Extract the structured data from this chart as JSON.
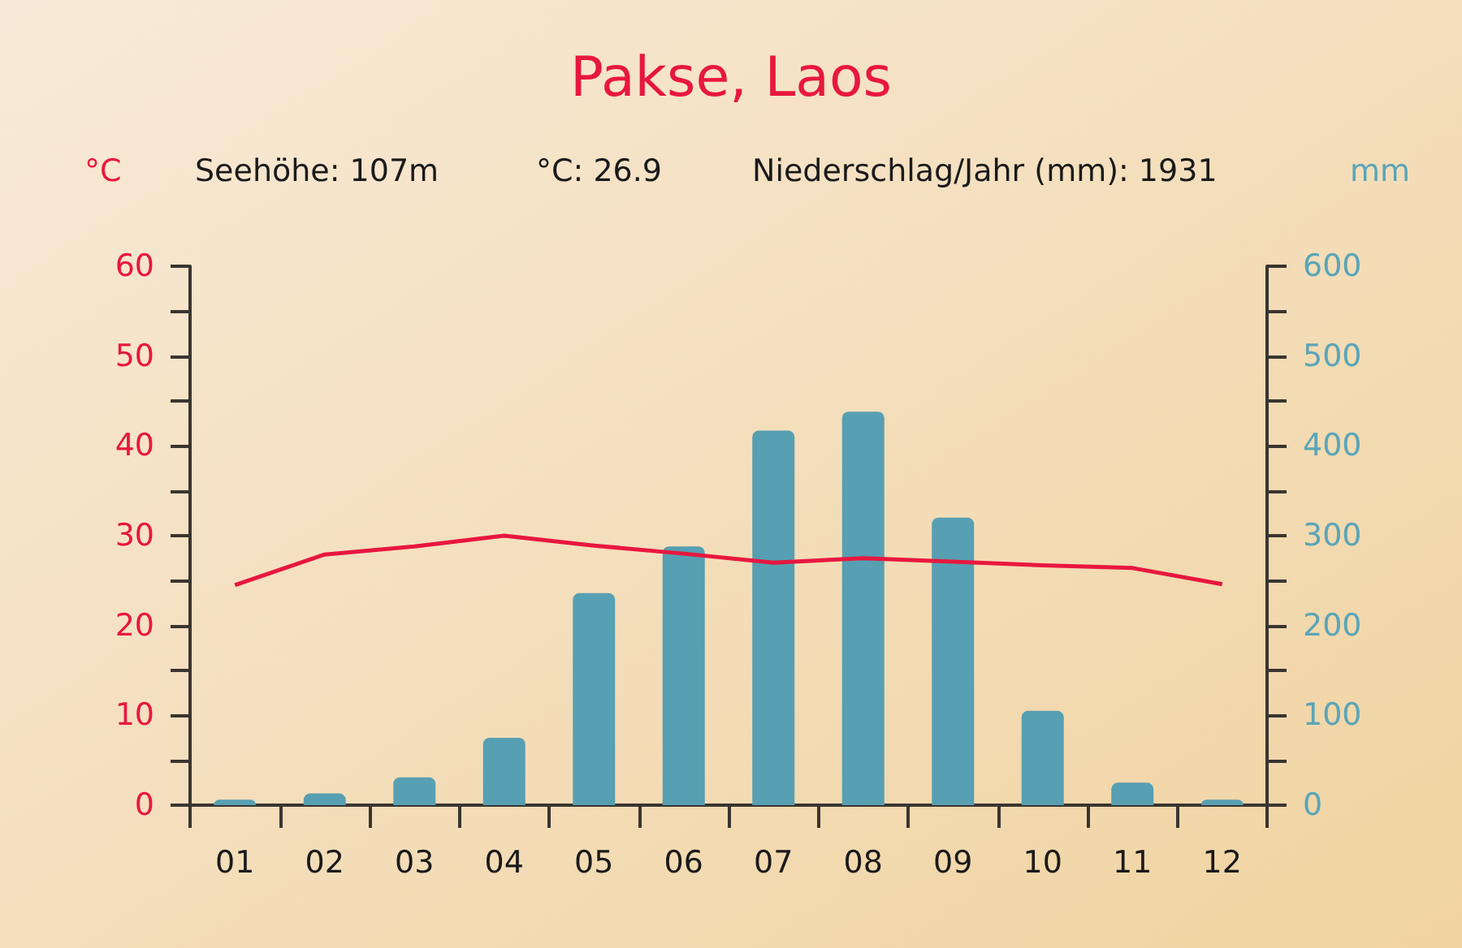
{
  "chart_data": {
    "type": "bar",
    "title": "Pakse, Laos",
    "ylabel": "°C",
    "y2label": "mm",
    "annotations": [
      "Seehöhe: 107m",
      "°C: 26.9",
      "Niederschlag/Jahr (mm): 1931"
    ],
    "categories": [
      "01",
      "02",
      "03",
      "04",
      "05",
      "06",
      "07",
      "08",
      "09",
      "10",
      "11",
      "12"
    ],
    "series": [
      {
        "axis": "y2",
        "color": "#579fb2",
        "values": [
          6,
          13,
          31,
          75,
          236,
          288,
          417,
          438,
          320,
          105,
          25,
          6
        ]
      },
      {
        "type": "line",
        "color": "#e8173f",
        "values": [
          24.5,
          27.9,
          28.8,
          30.0,
          28.9,
          28.0,
          27.0,
          27.5,
          27.1,
          26.7,
          26.4,
          24.6
        ]
      }
    ],
    "ylim": [
      0,
      60
    ],
    "yticks": [
      0,
      {
        "value": 5,
        "label": null
      },
      10,
      {
        "value": 15,
        "label": null
      },
      20,
      {
        "value": 25,
        "label": null
      },
      30,
      {
        "value": 35,
        "label": null
      },
      40,
      {
        "value": 45,
        "label": null
      },
      50,
      {
        "value": 55,
        "label": null
      },
      60
    ],
    "y2lim": [
      0,
      600
    ],
    "y2ticks": [
      0,
      {
        "value": 50,
        "label": null
      },
      100,
      {
        "value": 150,
        "label": null
      },
      200,
      {
        "value": 250,
        "label": null
      },
      300,
      {
        "value": 350,
        "label": null
      },
      400,
      {
        "value": 450,
        "label": null
      },
      500,
      {
        "value": 550,
        "label": null
      },
      600
    ],
    "grid": false,
    "marker": "none",
    "line_style": "solid"
  }
}
